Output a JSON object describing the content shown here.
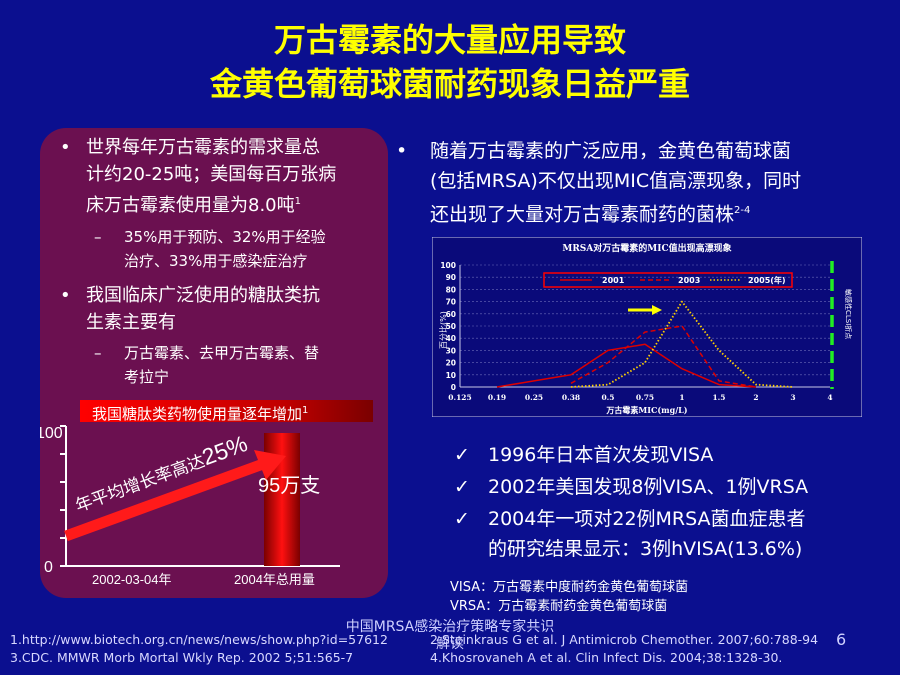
{
  "title": {
    "line1": "万古霉素的大量应用导致",
    "line2": "金黄色葡萄球菌耐药现象日益严重"
  },
  "left": {
    "bullet1_lines": [
      "世界每年万古霉素的需求量总",
      "计约20-25吨；美国每百万张病",
      "床万古霉素使用量为8.0吨"
    ],
    "bullet1_sup": "1",
    "bullet1_sub_lines": [
      "35%用于预防、32%用于经验",
      "治疗、33%用于感染症治疗"
    ],
    "bullet2_lines": [
      "我国临床广泛使用的糖肽类抗",
      "生素主要有"
    ],
    "bullet2_sub_lines": [
      "万古霉素、去甲万古霉素、替",
      "考拉宁"
    ],
    "banner": "我国糖肽类药物使用量逐年增加",
    "banner_sup": "1"
  },
  "growth_chart": {
    "y_max_label": "100",
    "y_min_label": "0",
    "growth_text": "年平均增长率高达",
    "growth_pct": "25%",
    "bar_label": "95万支",
    "bar_value": 95,
    "y_max": 100,
    "x_labels": [
      "2002-03-04年",
      "2004年总用量"
    ]
  },
  "right": {
    "bullet_lines": [
      "随着万古霉素的广泛应用，金黄色葡萄球菌",
      "(包括MRSA)不仅出现MIC值高漂现象，同时",
      "还出现了大量对万古霉素耐药的菌株"
    ],
    "bullet_sup": "2-4",
    "checks": [
      [
        "1996年日本首次发现VISA"
      ],
      [
        "2002年美国发现8例VISA、1例VRSA"
      ],
      [
        "2004年一项对22例MRSA菌血症患者",
        "的研究结果显示：3例hVISA(13.6%)"
      ]
    ],
    "notes": [
      "VISA：万古霉素中度耐药金黄色葡萄球菌",
      "VRSA：万古霉素耐药金黄色葡萄球菌"
    ]
  },
  "chart_data": {
    "type": "line",
    "title": "MRSA对万古霉素的MIC值出现高漂现象",
    "xlabel": "万古霉素MIC(mg/L)",
    "ylabel": "百分比(%)",
    "categories": [
      "0.125",
      "0.19",
      "0.25",
      "0.38",
      "0.5",
      "0.75",
      "1",
      "1.5",
      "2",
      "3",
      "4"
    ],
    "y_ticks": [
      "100",
      "90",
      "80",
      "70",
      "60",
      "50",
      "40",
      "30",
      "20",
      "10",
      "0"
    ],
    "ylim": [
      0,
      100
    ],
    "legend_labels": [
      "2001",
      "2003",
      "2005(年)"
    ],
    "breakpoint_label": "敏感性CLSI折点",
    "series": [
      {
        "name": "2001",
        "values": [
          null,
          0,
          5,
          10,
          30,
          35,
          15,
          2,
          0,
          null,
          null
        ]
      },
      {
        "name": "2003",
        "values": [
          null,
          null,
          null,
          3,
          20,
          45,
          50,
          5,
          0,
          null,
          null
        ]
      },
      {
        "name": "2005(年)",
        "values": [
          null,
          null,
          null,
          0,
          2,
          20,
          70,
          30,
          2,
          0,
          null
        ]
      }
    ],
    "colors": [
      "#dd0000",
      "#dd0000",
      "#ffd000"
    ]
  },
  "footer": {
    "center_lines": [
      "中国MRSA感染治疗策略专家共识",
      "解读"
    ],
    "refs_left": [
      "1.http://www.biotech.org.cn/news/news/show.php?id=57612",
      "3.CDC. MMWR Morb Mortal Wkly Rep. 2002 5;51:565-7"
    ],
    "refs_right": [
      "2.Steinkraus G et al. J Antimicrob Chemother. 2007;60:788-94",
      "4.Khosrovaneh A et al. Clin Infect Dis. 2004;38:1328-30."
    ],
    "page_number": "6"
  },
  "style": {
    "title_color": "#ffff00",
    "background": "#0b0f8f",
    "panel": "#6b1050"
  }
}
